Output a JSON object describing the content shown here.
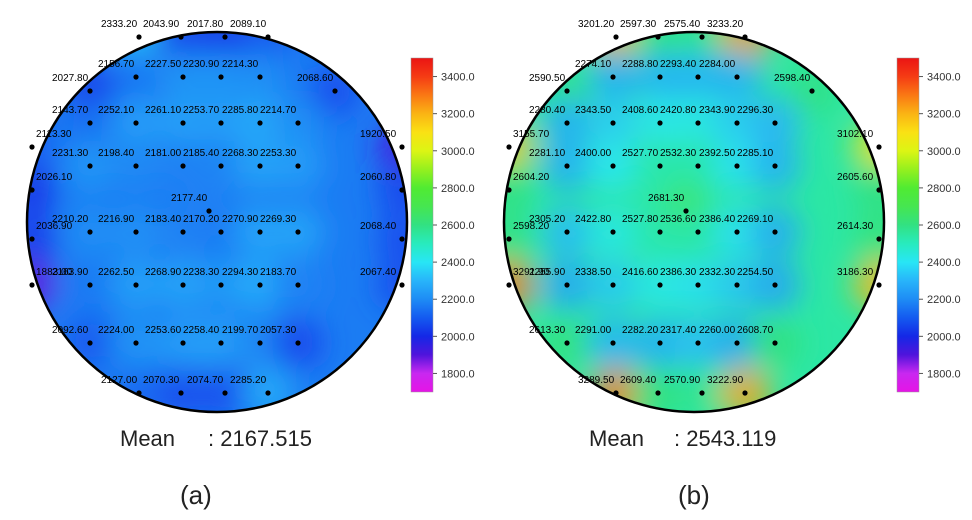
{
  "chart_data": [
    {
      "type": "heatmap",
      "caption": "(a)",
      "mean_label": "Mean",
      "mean_value": ": 2167.515",
      "colorbar": {
        "min": 1700,
        "max": 3500,
        "ticks": [
          "3400.0",
          "3200.0",
          "3000.0",
          "2800.0",
          "2600.0",
          "2400.0",
          "2200.0",
          "2000.0",
          "1800.0"
        ]
      },
      "points": [
        {
          "label": "2333.20",
          "value": 2333.2
        },
        {
          "label": "2043.90",
          "value": 2043.9
        },
        {
          "label": "2017.80",
          "value": 2017.8
        },
        {
          "label": "2089.10",
          "value": 2089.1
        },
        {
          "label": "2156.70",
          "value": 2156.7
        },
        {
          "label": "2227.50",
          "value": 2227.5
        },
        {
          "label": "2230.90",
          "value": 2230.9
        },
        {
          "label": "2214.30",
          "value": 2214.3
        },
        {
          "label": "2027.80",
          "value": 2027.8
        },
        {
          "label": "2068.60",
          "value": 2068.6
        },
        {
          "label": "2143.70",
          "value": 2143.7
        },
        {
          "label": "2252.10",
          "value": 2252.1
        },
        {
          "label": "2261.10",
          "value": 2261.1
        },
        {
          "label": "2253.70",
          "value": 2253.7
        },
        {
          "label": "2285.80",
          "value": 2285.8
        },
        {
          "label": "2214.70",
          "value": 2214.7
        },
        {
          "label": "2113.30",
          "value": 2113.3
        },
        {
          "label": "1920.50",
          "value": 1920.5
        },
        {
          "label": "2231.30",
          "value": 2231.3
        },
        {
          "label": "2198.40",
          "value": 2198.4
        },
        {
          "label": "2181.00",
          "value": 2181.0
        },
        {
          "label": "2185.40",
          "value": 2185.4
        },
        {
          "label": "2268.30",
          "value": 2268.3
        },
        {
          "label": "2253.30",
          "value": 2253.3
        },
        {
          "label": "2026.10",
          "value": 2026.1
        },
        {
          "label": "2060.80",
          "value": 2060.8
        },
        {
          "label": "2177.40",
          "value": 2177.4
        },
        {
          "label": "2210.20",
          "value": 2210.2
        },
        {
          "label": "2216.90",
          "value": 2216.9
        },
        {
          "label": "2183.40",
          "value": 2183.4
        },
        {
          "label": "2170.20",
          "value": 2170.2
        },
        {
          "label": "2270.90",
          "value": 2270.9
        },
        {
          "label": "2269.30",
          "value": 2269.3
        },
        {
          "label": "2036.90",
          "value": 2036.9
        },
        {
          "label": "2068.40",
          "value": 2068.4
        },
        {
          "label": "1883.00",
          "value": 1883.0
        },
        {
          "label": "2163.90",
          "value": 2163.9
        },
        {
          "label": "2262.50",
          "value": 2262.5
        },
        {
          "label": "2268.90",
          "value": 2268.9
        },
        {
          "label": "2238.30",
          "value": 2238.3
        },
        {
          "label": "2294.30",
          "value": 2294.3
        },
        {
          "label": "2183.70",
          "value": 2183.7
        },
        {
          "label": "2067.40",
          "value": 2067.4
        },
        {
          "label": "2092.60",
          "value": 2092.6
        },
        {
          "label": "2224.00",
          "value": 2224.0
        },
        {
          "label": "2253.60",
          "value": 2253.6
        },
        {
          "label": "2258.40",
          "value": 2258.4
        },
        {
          "label": "2199.70",
          "value": 2199.7
        },
        {
          "label": "2057.30",
          "value": 2057.3
        },
        {
          "label": "2127.00",
          "value": 2127.0
        },
        {
          "label": "2070.30",
          "value": 2070.3
        },
        {
          "label": "2074.70",
          "value": 2074.7
        },
        {
          "label": "2285.20",
          "value": 2285.2
        }
      ]
    },
    {
      "type": "heatmap",
      "caption": "(b)",
      "mean_label": "Mean",
      "mean_value": ": 2543.119",
      "colorbar": {
        "min": 1700,
        "max": 3500,
        "ticks": [
          "3400.0",
          "3200.0",
          "3000.0",
          "2800.0",
          "2600.0",
          "2400.0",
          "2200.0",
          "2000.0",
          "1800.0"
        ]
      },
      "points": [
        {
          "label": "3201.20",
          "value": 3201.2
        },
        {
          "label": "2597.30",
          "value": 2597.3
        },
        {
          "label": "2575.40",
          "value": 2575.4
        },
        {
          "label": "3233.20",
          "value": 3233.2
        },
        {
          "label": "2274.10",
          "value": 2274.1
        },
        {
          "label": "2288.80",
          "value": 2288.8
        },
        {
          "label": "2293.40",
          "value": 2293.4
        },
        {
          "label": "2284.00",
          "value": 2284.0
        },
        {
          "label": "2590.50",
          "value": 2590.5
        },
        {
          "label": "2598.40",
          "value": 2598.4
        },
        {
          "label": "2280.40",
          "value": 2280.4
        },
        {
          "label": "2343.50",
          "value": 2343.5
        },
        {
          "label": "2408.60",
          "value": 2408.6
        },
        {
          "label": "2420.80",
          "value": 2420.8
        },
        {
          "label": "2343.90",
          "value": 2343.9
        },
        {
          "label": "2296.30",
          "value": 2296.3
        },
        {
          "label": "3155.70",
          "value": 3155.7
        },
        {
          "label": "3102.10",
          "value": 3102.1
        },
        {
          "label": "2281.10",
          "value": 2281.1
        },
        {
          "label": "2400.00",
          "value": 2400.0
        },
        {
          "label": "2527.70",
          "value": 2527.7
        },
        {
          "label": "2532.30",
          "value": 2532.3
        },
        {
          "label": "2392.50",
          "value": 2392.5
        },
        {
          "label": "2285.10",
          "value": 2285.1
        },
        {
          "label": "2604.20",
          "value": 2604.2
        },
        {
          "label": "2605.60",
          "value": 2605.6
        },
        {
          "label": "2681.30",
          "value": 2681.3
        },
        {
          "label": "2305.20",
          "value": 2305.2
        },
        {
          "label": "2422.80",
          "value": 2422.8
        },
        {
          "label": "2527.80",
          "value": 2527.8
        },
        {
          "label": "2536.60",
          "value": 2536.6
        },
        {
          "label": "2386.40",
          "value": 2386.4
        },
        {
          "label": "2269.10",
          "value": 2269.1
        },
        {
          "label": "2598.20",
          "value": 2598.2
        },
        {
          "label": "2614.30",
          "value": 2614.3
        },
        {
          "label": "3291.90",
          "value": 3291.9
        },
        {
          "label": "2255.90",
          "value": 2255.9
        },
        {
          "label": "2338.50",
          "value": 2338.5
        },
        {
          "label": "2416.60",
          "value": 2416.6
        },
        {
          "label": "2386.30",
          "value": 2386.3
        },
        {
          "label": "2332.30",
          "value": 2332.3
        },
        {
          "label": "2254.50",
          "value": 2254.5
        },
        {
          "label": "3186.30",
          "value": 3186.3
        },
        {
          "label": "2613.30",
          "value": 2613.3
        },
        {
          "label": "2291.00",
          "value": 2291.0
        },
        {
          "label": "2282.20",
          "value": 2282.2
        },
        {
          "label": "2317.40",
          "value": 2317.4
        },
        {
          "label": "2260.00",
          "value": 2260.0
        },
        {
          "label": "2608.70",
          "value": 2608.7
        },
        {
          "label": "3289.50",
          "value": 3289.5
        },
        {
          "label": "2609.40",
          "value": 2609.4
        },
        {
          "label": "2570.90",
          "value": 2570.9
        },
        {
          "label": "3222.90",
          "value": 3222.9
        }
      ]
    }
  ]
}
